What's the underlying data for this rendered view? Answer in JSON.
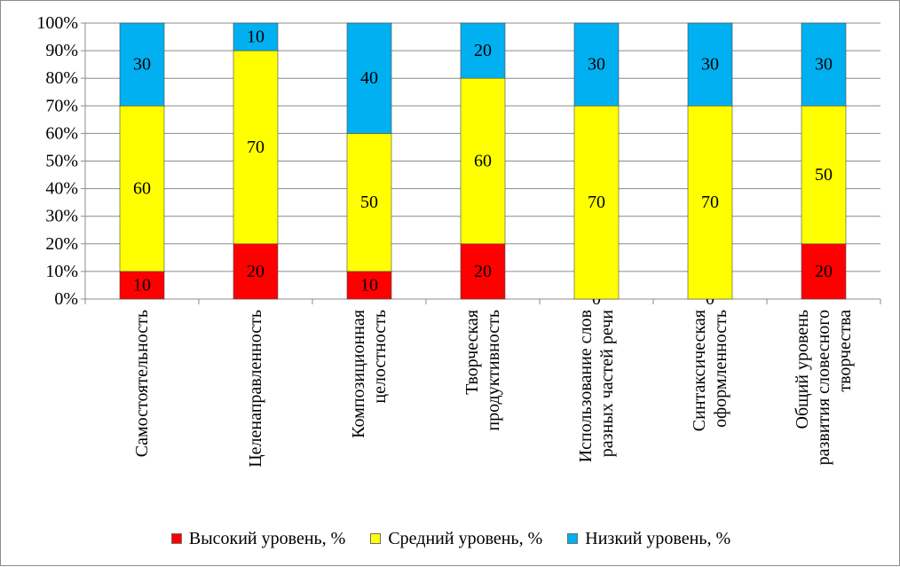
{
  "chart_data": {
    "type": "bar",
    "stacked": true,
    "percent_stacked": true,
    "categories": [
      [
        "Самостоятельность"
      ],
      [
        "Целенаправленность"
      ],
      [
        "Композиционная",
        "целостность"
      ],
      [
        "Творческая",
        "продуктивность"
      ],
      [
        "Использование слов",
        "разных частей речи"
      ],
      [
        "Синтаксическая",
        "оформленность"
      ],
      [
        "Общий уровень",
        "развития словесного",
        "творчества"
      ]
    ],
    "series": [
      {
        "name": "Высокий уровень, %",
        "color": "#FF0000",
        "values": [
          10,
          20,
          10,
          20,
          0,
          0,
          20
        ]
      },
      {
        "name": "Средний уровень, %",
        "color": "#FFFF00",
        "values": [
          60,
          70,
          50,
          60,
          70,
          70,
          50
        ]
      },
      {
        "name": "Низкий уровень, %",
        "color": "#00B0F0",
        "values": [
          30,
          10,
          40,
          20,
          30,
          30,
          30
        ]
      }
    ],
    "ylim": [
      0,
      100
    ],
    "yticks": [
      "0%",
      "10%",
      "20%",
      "30%",
      "40%",
      "50%",
      "60%",
      "70%",
      "80%",
      "90%",
      "100%"
    ],
    "grid": true,
    "legend_position": "bottom",
    "xlabel": "",
    "ylabel": ""
  }
}
